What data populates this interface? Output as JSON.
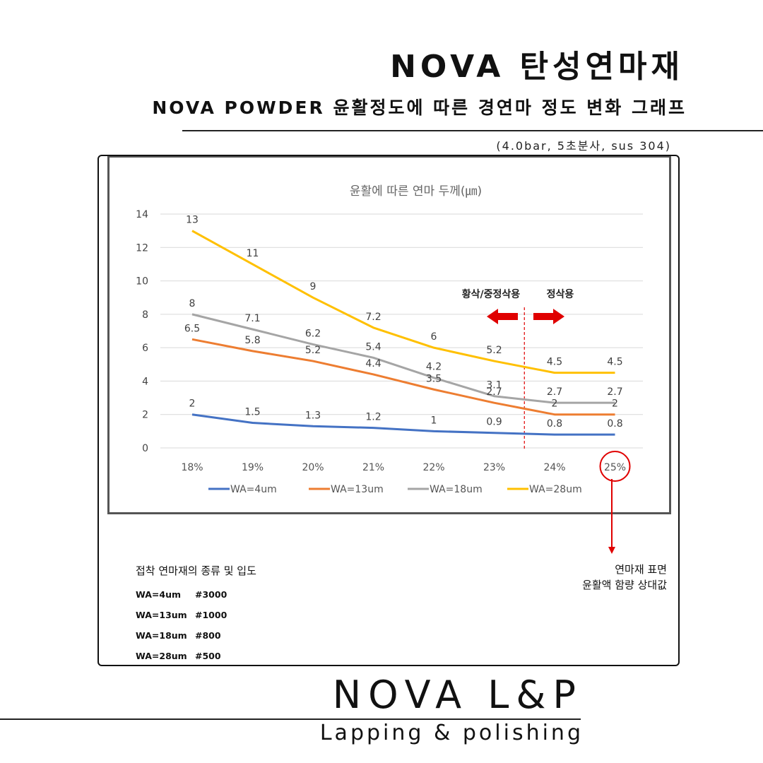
{
  "header": {
    "title": "NOVA 탄성연마재",
    "subtitle": "NOVA POWDER 윤활정도에 따른 경연마 정도 변화 그래프",
    "conditions": "(4.0bar, 5초분사, sus 304)"
  },
  "chart_data": {
    "type": "line",
    "title": "윤활에 따른 연마 두께(㎛)",
    "xlabel": "",
    "ylabel": "",
    "categories": [
      "18%",
      "19%",
      "20%",
      "21%",
      "22%",
      "23%",
      "24%",
      "25%"
    ],
    "ylim": [
      0,
      14
    ],
    "yticks": [
      0,
      2,
      4,
      6,
      8,
      10,
      12,
      14
    ],
    "grid": true,
    "legend": "bottom",
    "series": [
      {
        "name": "WA=4um",
        "color": "#4472C4",
        "values": [
          2,
          1.5,
          1.3,
          1.2,
          1,
          0.9,
          0.8,
          0.8
        ]
      },
      {
        "name": "WA=13um",
        "color": "#ED7D31",
        "values": [
          6.5,
          5.8,
          5.2,
          4.4,
          3.5,
          2.7,
          2,
          2
        ]
      },
      {
        "name": "WA=18um",
        "color": "#A5A5A5",
        "values": [
          8,
          7.1,
          6.2,
          5.4,
          4.2,
          3.1,
          2.7,
          2.7
        ]
      },
      {
        "name": "WA=28um",
        "color": "#FFC000",
        "values": [
          13,
          11,
          9,
          7.2,
          6,
          5.2,
          4.5,
          4.5
        ]
      }
    ],
    "annotations": {
      "left_label": "황삭/중정삭용",
      "right_label": "정삭용",
      "arrow_color": "#E00000",
      "highlight_category": "25%"
    }
  },
  "notes": {
    "left_title": "접착 연마재의 종류 및 입도",
    "grades": [
      {
        "wa": "WA=4um",
        "grit": "#3000"
      },
      {
        "wa": "WA=13um",
        "grit": "#1000"
      },
      {
        "wa": "WA=18um",
        "grit": "#800"
      },
      {
        "wa": "WA=28um",
        "grit": "#500"
      }
    ],
    "right_line1": "연마재 표면",
    "right_line2": "윤활액 함량 상대값"
  },
  "footer": {
    "brand": "NOVA L&P",
    "tagline": "Lapping & polishing"
  }
}
